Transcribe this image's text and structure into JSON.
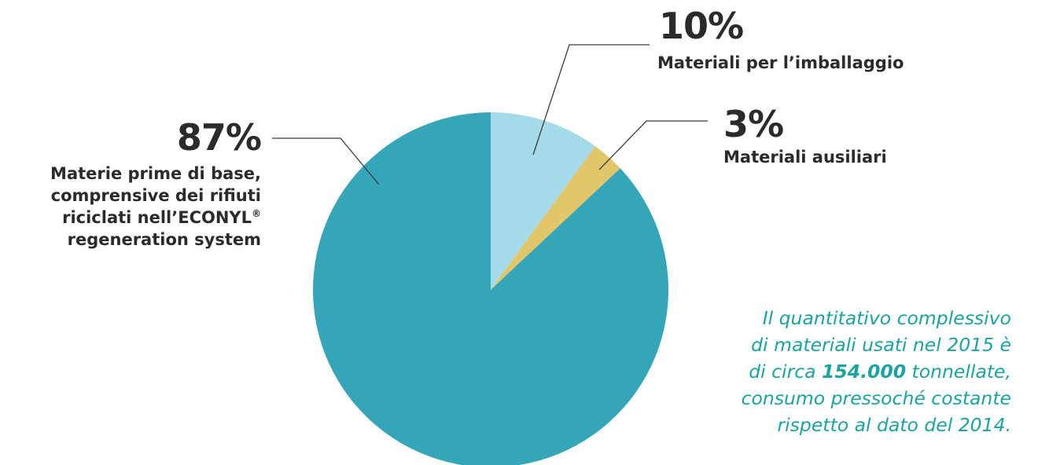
{
  "chart_data": {
    "type": "pie",
    "start_angle_deg": 0,
    "direction": "clockwise",
    "slices": [
      {
        "key": "packaging",
        "value": 10,
        "percent_label": "10%",
        "label": "Materiali per l’imballaggio",
        "color": "#a5dbe8"
      },
      {
        "key": "auxiliary",
        "value": 3,
        "percent_label": "3%",
        "label": "Materiali ausiliari",
        "color": "#e2c66a"
      },
      {
        "key": "raw",
        "value": 87,
        "percent_label": "87%",
        "label_lines": [
          "Materie prime di base,",
          "comprensive dei rifiuti",
          "riciclati nell’ECONYL",
          "regeneration system"
        ],
        "label_superscript": "®",
        "color": "#35a6b9"
      }
    ]
  },
  "note": {
    "line1": "Il quantitativo complessivo",
    "line2": "di materiali usati nel 2015 è",
    "line3_before": "di circa ",
    "line3_strong": "154.000",
    "line3_after": " tonnellate,",
    "line4": "consumo pressoché costante",
    "line5": "rispetto al dato del 2014.",
    "color": "#1aa39f"
  },
  "colors": {
    "text": "#2b2b2b",
    "leader": "#3a3a3a"
  }
}
